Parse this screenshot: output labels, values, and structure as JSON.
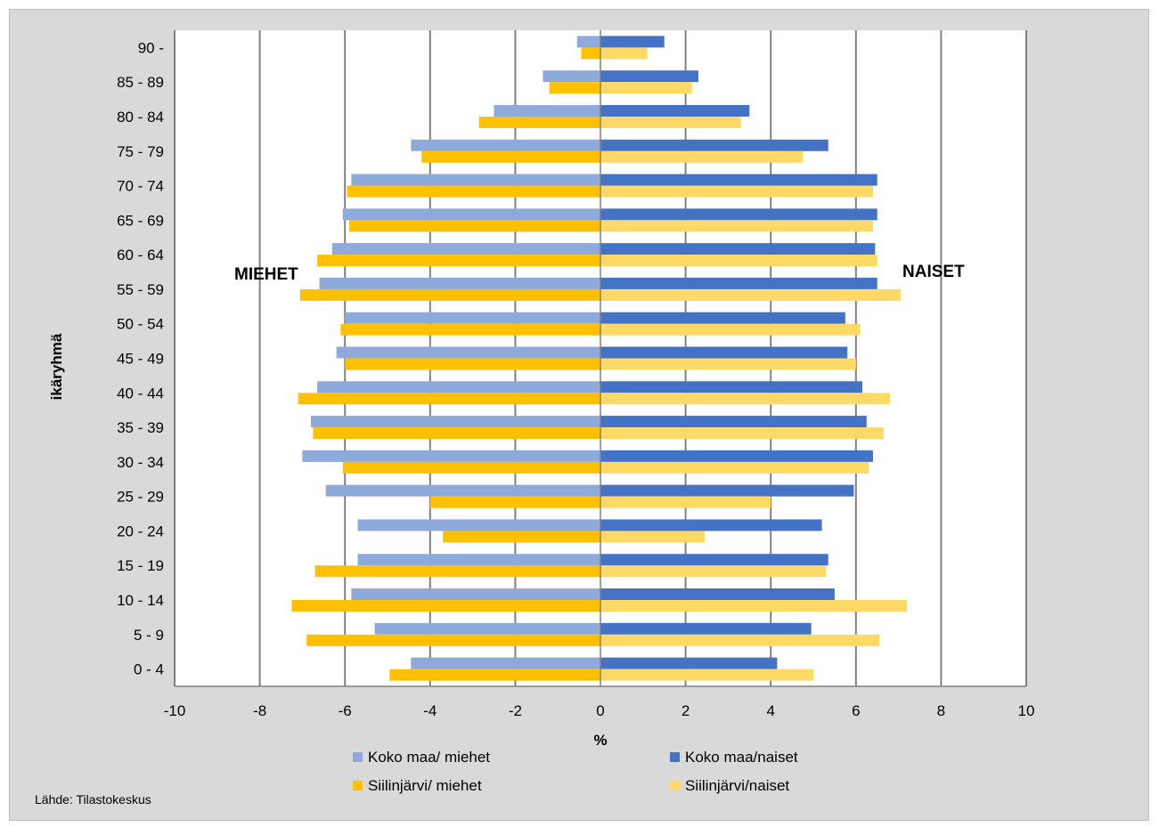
{
  "chart_data": {
    "type": "bar",
    "orientation": "horizontal",
    "categories": [
      "0 - 4",
      "5 - 9",
      "10 - 14",
      "15 - 19",
      "20 - 24",
      "25 - 29",
      "30 - 34",
      "35 - 39",
      "40 - 44",
      "45 - 49",
      "50 - 54",
      "55 - 59",
      "60 - 64",
      "65 - 69",
      "70 - 74",
      "75 - 79",
      "80 - 84",
      "85 - 89",
      "90 -"
    ],
    "series": [
      {
        "name": "Koko maa/ miehet",
        "color": "#8eaadb",
        "values": [
          -4.45,
          -5.3,
          -5.85,
          -5.7,
          -5.7,
          -6.45,
          -7.0,
          -6.8,
          -6.65,
          -6.2,
          -6.0,
          -6.6,
          -6.3,
          -6.05,
          -5.85,
          -4.45,
          -2.5,
          -1.35,
          -0.55
        ]
      },
      {
        "name": "Siilinjärvi/ miehet",
        "color": "#ffc000",
        "values": [
          -4.95,
          -6.9,
          -7.25,
          -6.7,
          -3.7,
          -4.0,
          -6.05,
          -6.75,
          -7.1,
          -6.0,
          -6.1,
          -7.05,
          -6.65,
          -5.9,
          -5.95,
          -4.2,
          -2.85,
          -1.2,
          -0.45
        ]
      },
      {
        "name": "Koko maa/naiset",
        "color": "#4472c4",
        "values": [
          4.15,
          4.95,
          5.5,
          5.35,
          5.2,
          5.95,
          6.4,
          6.25,
          6.15,
          5.8,
          5.75,
          6.5,
          6.45,
          6.5,
          6.5,
          5.35,
          3.5,
          2.3,
          1.5
        ]
      },
      {
        "name": "Siilinjärvi/naiset",
        "color": "#ffd966",
        "values": [
          5.0,
          6.55,
          7.2,
          5.3,
          2.45,
          4.0,
          6.3,
          6.65,
          6.8,
          6.0,
          6.1,
          7.05,
          6.5,
          6.4,
          6.4,
          4.75,
          3.3,
          2.15,
          1.1
        ]
      }
    ],
    "xlim": [
      -10,
      10
    ],
    "xticks": [
      -10,
      -8,
      -6,
      -4,
      -2,
      0,
      2,
      4,
      6,
      8,
      10
    ],
    "xlabel": "%",
    "ylabel": "ikäryhmä",
    "annotations": {
      "left": "MIEHET",
      "right": "NAISET"
    },
    "legend_position": "bottom",
    "grid": "vertical"
  },
  "source": "Lähde: Tilastokeskus"
}
